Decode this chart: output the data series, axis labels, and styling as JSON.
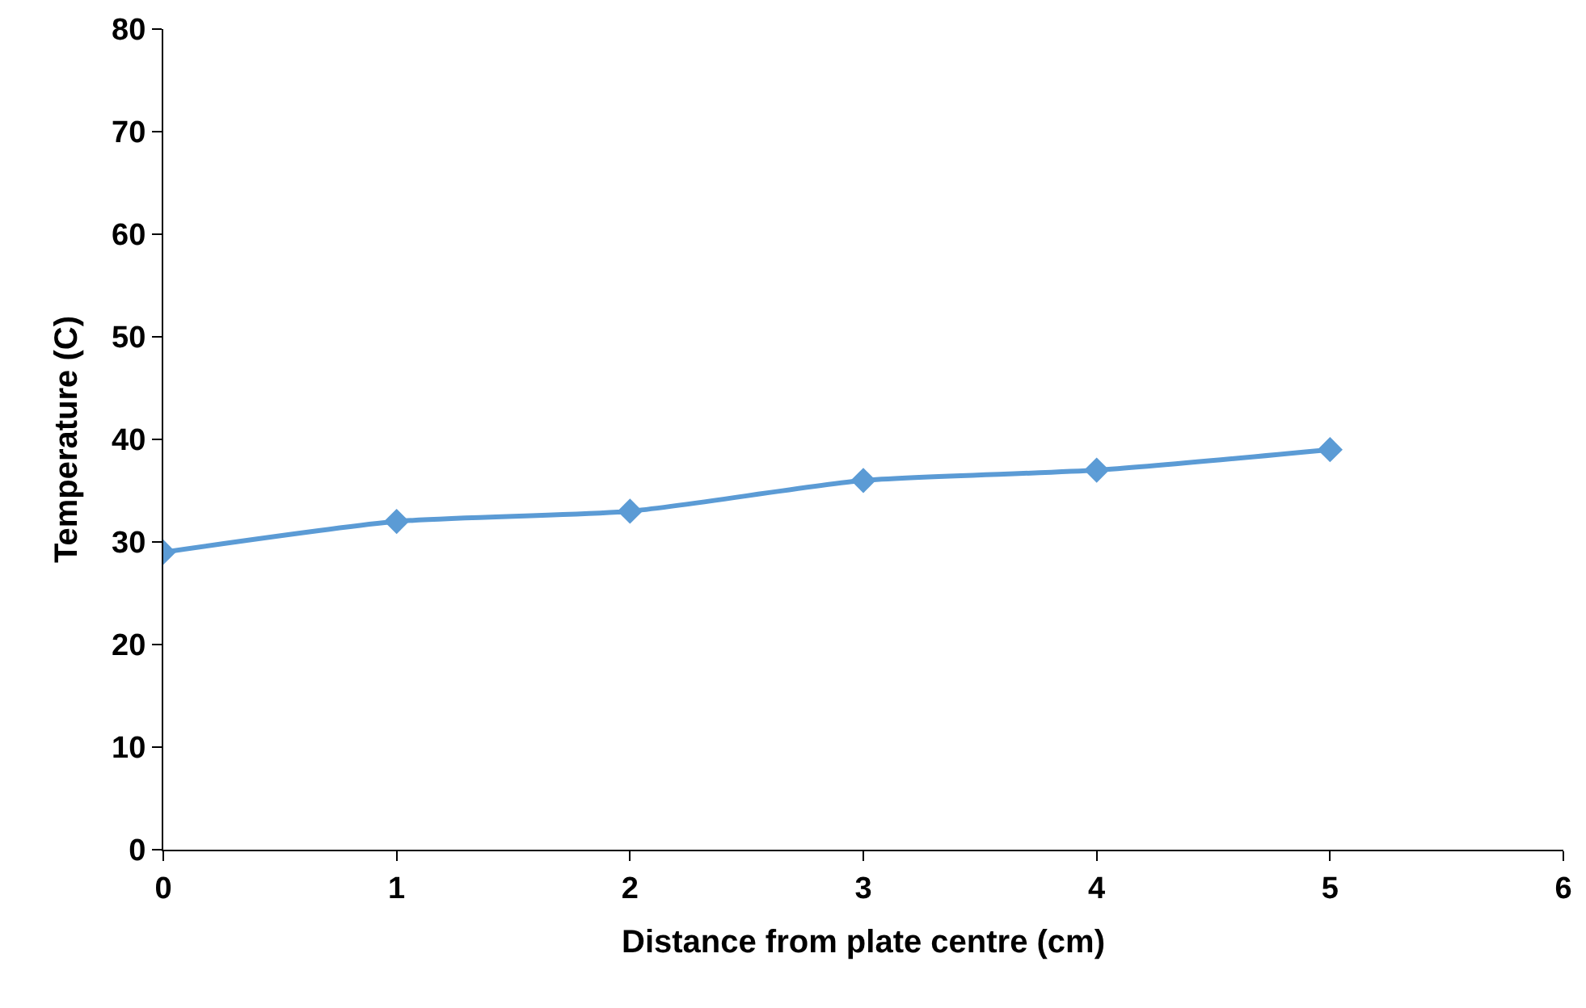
{
  "chart_data": {
    "type": "line",
    "xlabel": "Distance from plate centre (cm)",
    "ylabel": "Temperature (C)",
    "x": [
      0,
      1,
      2,
      3,
      4,
      5
    ],
    "series": [
      {
        "color": "#5b9bd5",
        "values": [
          29,
          32,
          33,
          36,
          37,
          39
        ]
      }
    ],
    "xlim": [
      0,
      6
    ],
    "xticks": [
      0,
      1,
      2,
      3,
      4,
      5,
      6
    ],
    "ylim": [
      0,
      80
    ],
    "yticks": [
      0,
      10,
      20,
      30,
      40,
      50,
      60,
      70,
      80
    ],
    "marker": "diamond",
    "line_style": "solid"
  }
}
